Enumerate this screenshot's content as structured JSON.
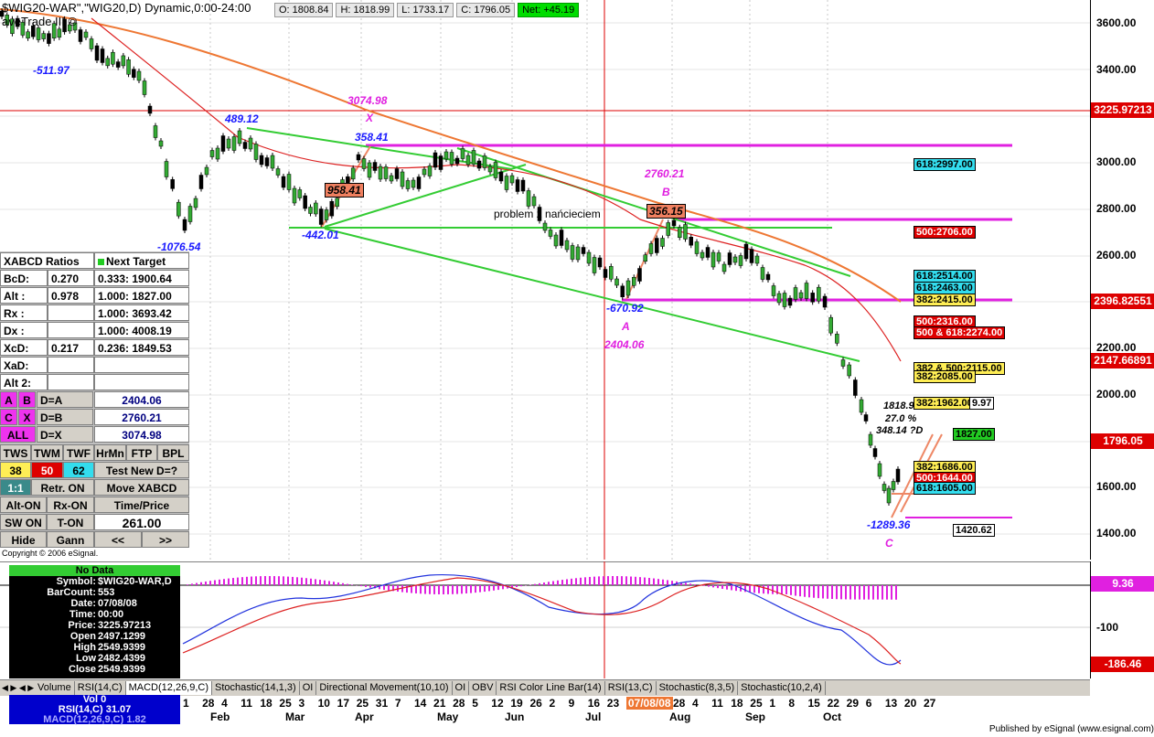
{
  "title": {
    "symbol_line": "$WIG20-WAR\",\"WIG20,D) Dynamic,0:00-24:00",
    "study_line": "aveTrade III ©"
  },
  "ohlc": {
    "open": "O: 1808.84",
    "high": "H: 1818.99",
    "low": "L: 1733.17",
    "close": "C: 1796.05",
    "net": "Net: +45.19"
  },
  "price_axis": {
    "ticks": [
      "3600.00",
      "3400.00",
      "3200.00",
      "3000.00",
      "2800.00",
      "2600.00",
      "2400.00",
      "2200.00",
      "2000.00",
      "1800.00",
      "1600.00",
      "1400.00"
    ],
    "badge_red_top": "3225.97213",
    "badge_red_mid": "2396.82551",
    "badge_red_low": "2147.66891",
    "badge_red_last": "1796.05"
  },
  "wave_labels": {
    "x_value": "3074.98",
    "x": "X",
    "pt_489": "489.12",
    "pt_358": "358.41",
    "pt_511": "-511.97",
    "pt_1076": "-1076.54",
    "pt_442": "-442.01",
    "box_958": "958.41",
    "box_356": "356.15",
    "problem": "problem z nańcieciem",
    "b_value": "2760.21",
    "b": "B",
    "pt_670": "-670.92",
    "a": "A",
    "a_value": "2404.06",
    "pt_1289": "-1289.36",
    "c": "C",
    "d_high": "1818.9",
    "d_pct": "27.0 %",
    "d_label": "348.14 ?D"
  },
  "level_boxes": {
    "l2997": "618:2997.00",
    "l2706": "500:2706.00",
    "l2514": "618:2514.00",
    "l2463": "618:2463.00",
    "l2415": "382:2415.00",
    "l2316": "500:2316.00",
    "l2274": "500 & 618:2274.00",
    "l2115": "382 & 500:2115.00",
    "l2085": "382:2085.00",
    "l1962": "382:1962.00",
    "l1962b": "9.97",
    "l1827": "1827.00",
    "l1686": "382:1686.00",
    "l1644": "500:1644.00",
    "l1605": "618:1605.00",
    "l1420": "1420.62"
  },
  "xabcd_panel": {
    "header": "XABCD Ratios",
    "next_target": "Next Target",
    "rows": [
      {
        "k": "BcD:",
        "v": "0.270",
        "t": "0.333: 1900.64"
      },
      {
        "k": "Alt  :",
        "v": "0.978",
        "t": "1.000: 1827.00"
      },
      {
        "k": "Rx  :",
        "v": "",
        "t": "1.000: 3693.42"
      },
      {
        "k": "Dx  :",
        "v": "",
        "t": "1.000: 4008.19"
      },
      {
        "k": "XcD:",
        "v": "0.217",
        "t": "0.236: 1849.53"
      },
      {
        "k": "XaD:",
        "v": "",
        "t": ""
      },
      {
        "k": "Alt 2:",
        "v": "",
        "t": ""
      }
    ],
    "ab": {
      "a": "A",
      "b": "B",
      "label": "D=A",
      "value": "2404.06"
    },
    "cx": {
      "c": "C",
      "x": "X",
      "label": "D=B",
      "value": "2760.21"
    },
    "all": {
      "label": "ALL",
      "eq": "D=X",
      "value": "3074.98"
    },
    "tabs": [
      "TWS",
      "TWM",
      "TWF",
      "HrMn",
      "FTP",
      "BPL"
    ],
    "nums": [
      "38",
      "50",
      "62"
    ],
    "test_new": "Test New D=?",
    "ratio": "1:1",
    "retr_on": "Retr. ON",
    "move_xabcd": "Move XABCD",
    "alt_on": "Alt-ON",
    "rx_on": "Rx-ON",
    "time_price": "Time/Price",
    "sw_on": "SW ON",
    "t_on": "T-ON",
    "price_value": "261.00",
    "hide": "Hide",
    "gann": "Gann",
    "prev": "<<",
    "next": ">>"
  },
  "copyright": "Copyright © 2006 eSignal.",
  "data_window": {
    "title": "No Data",
    "rows": [
      {
        "k": "Symbol:",
        "v": "$WIG20-WAR,D"
      },
      {
        "k": "BarCount:",
        "v": "553"
      },
      {
        "k": "Date:",
        "v": "07/08/08"
      },
      {
        "k": "Time:",
        "v": "00:00"
      },
      {
        "k": "Price:",
        "v": "3225.97213"
      },
      {
        "k": "Open",
        "v": "2497.1299"
      },
      {
        "k": "High",
        "v": "2549.9399"
      },
      {
        "k": "Low",
        "v": "2482.4399"
      },
      {
        "k": "Close",
        "v": "2549.9399"
      }
    ]
  },
  "macd_axis": {
    "badge_top": "9.36",
    "tick": "-100",
    "badge_bottom": "-186.46"
  },
  "tabs": [
    "Volume",
    "RSI(14,C)",
    "MACD(12,26,9,C)",
    "Stochastic(14,1,3)",
    "OI",
    "Directional Movement(10,10)",
    "OI",
    "OBV",
    "RSI Color Line Bar(14)",
    "RSI(13,C)",
    "Stochastic(8,3,5)",
    "Stochastic(10,2,4)"
  ],
  "status_box": {
    "vol": "Vol 0",
    "rsi": "RSI(14,C) 31.07",
    "macd": "MACD(12,26,9,C) 1.82"
  },
  "date_axis": {
    "days": [
      "1",
      "28",
      "4",
      "11",
      "18",
      "25",
      "3",
      "10",
      "17",
      "25",
      "31",
      "7",
      "14",
      "21",
      "28",
      "5",
      "12",
      "19",
      "26",
      "2",
      "9",
      "16",
      "23",
      "07/08/08",
      "28",
      "4",
      "11",
      "18",
      "25",
      "1",
      "8",
      "15",
      "22",
      "29",
      "6",
      "13",
      "20",
      "27"
    ],
    "months": [
      "Feb",
      "Mar",
      "Apr",
      "May",
      "Jun",
      "Jul",
      "Aug",
      "Sep",
      "Oct"
    ]
  },
  "footer": "Published by eSignal (www.esignal.com)",
  "colors": {
    "accent_red": "#dd0000",
    "magenta": "#e020e0",
    "green_line": "#33cc33",
    "orange_ma": "#ee7733"
  }
}
